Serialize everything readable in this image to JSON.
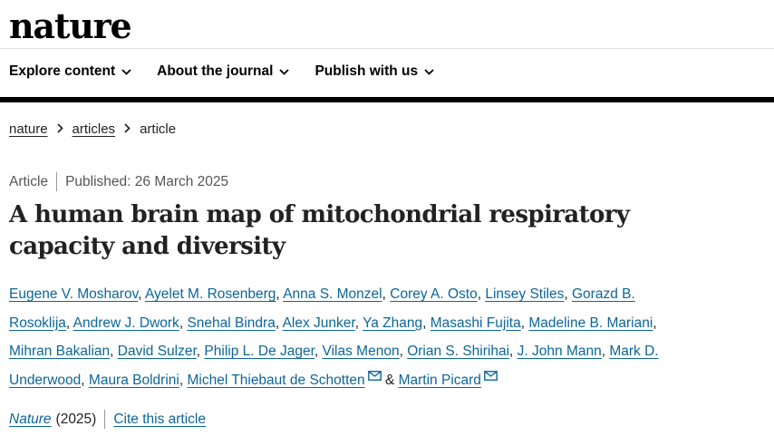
{
  "header": {
    "logo": "nature"
  },
  "nav": {
    "items": [
      {
        "label": "Explore content",
        "icon": "chevron-down-icon"
      },
      {
        "label": "About the journal",
        "icon": "chevron-down-icon"
      },
      {
        "label": "Publish with us",
        "icon": "chevron-down-icon"
      }
    ]
  },
  "breadcrumb": {
    "items": [
      "nature",
      "articles",
      "article"
    ],
    "separator_icon": "chevron-right-icon"
  },
  "article": {
    "type": "Article",
    "published": "Published: 26 March 2025",
    "title": "A human brain map of mitochondrial respiratory capacity and diversity",
    "authors": [
      "Eugene V. Mosharov",
      "Ayelet M. Rosenberg",
      "Anna S. Monzel",
      "Corey A. Osto",
      "Linsey Stiles",
      "Gorazd B. Rosoklija",
      "Andrew J. Dwork",
      "Snehal Bindra",
      "Alex Junker",
      "Ya Zhang",
      "Masashi Fujita",
      "Madeline B. Mariani",
      "Mihran Bakalian",
      "David Sulzer",
      "Philip L. De Jager",
      "Vilas Menon",
      "Orian S. Shirihai",
      "J. John Mann",
      "Mark D. Underwood",
      "Maura Boldrini",
      "Michel Thiebaut de Schotten",
      "Martin Picard"
    ],
    "author_separator": ",",
    "last_author_joiner": "&",
    "email_icon": "mail-icon",
    "journal": "Nature",
    "year": "(2025)",
    "cite_label": "Cite this article"
  },
  "colors": {
    "link": "#0c6699",
    "text": "#222222",
    "rule": "#000000"
  }
}
